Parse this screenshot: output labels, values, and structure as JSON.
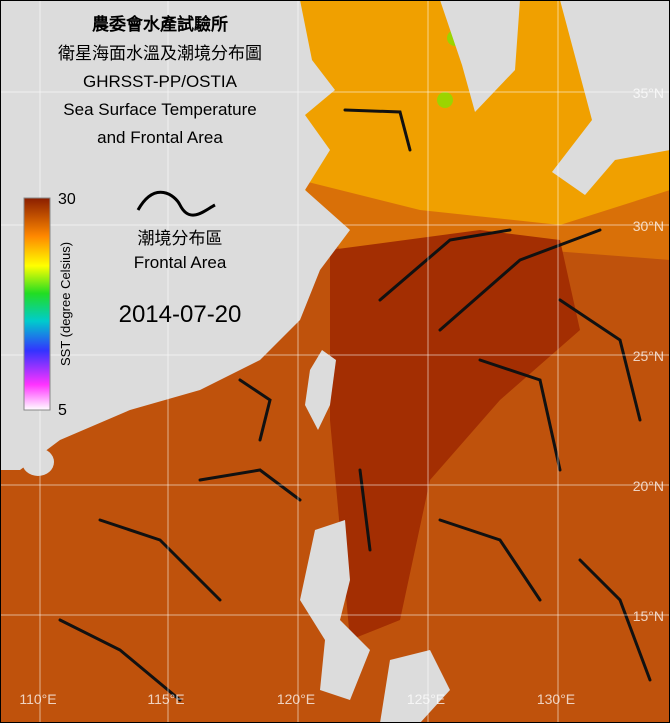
{
  "header": {
    "title_lines": [
      "農委會水產試驗所",
      "衛星海面水溫及潮境分布圖",
      "GHRSST-PP/OSTIA",
      "Sea Surface Temperature",
      "and Frontal Area"
    ]
  },
  "legend": {
    "frontal_label_zh": "潮境分布區",
    "frontal_label_en": "Frontal Area"
  },
  "colorbar": {
    "max_label": "30",
    "min_label": "5",
    "axis_label": "SST (degree Celsius)"
  },
  "date": "2014-07-20",
  "map": {
    "lon_labels": [
      "110°E",
      "115°E",
      "120°E",
      "125°E",
      "130°E"
    ],
    "lat_labels": [
      "35°N",
      "30°N",
      "25°N",
      "20°N",
      "15°N"
    ]
  }
}
